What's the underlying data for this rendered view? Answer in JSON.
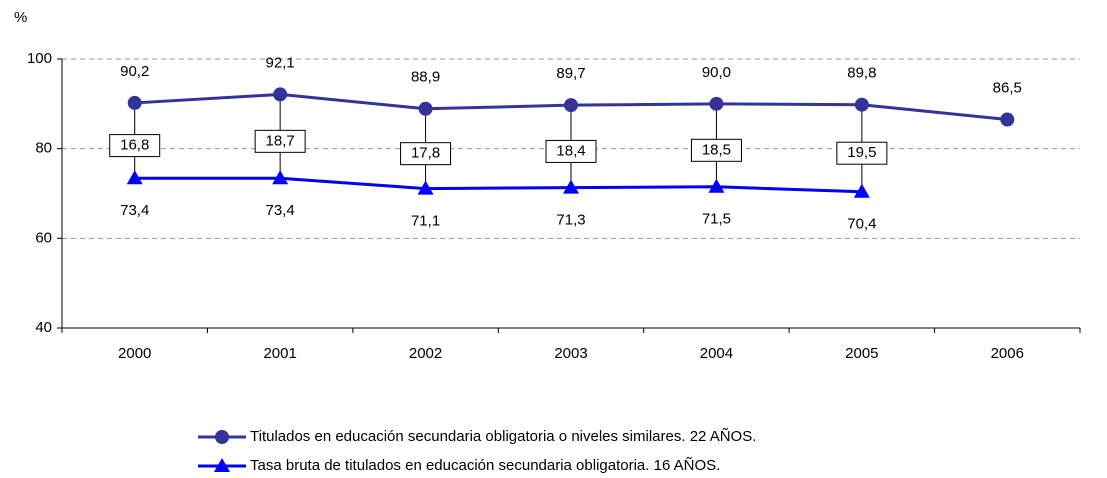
{
  "chart_data": {
    "type": "line",
    "y_label": "%",
    "categories": [
      "2000",
      "2001",
      "2002",
      "2003",
      "2004",
      "2005",
      "2006"
    ],
    "series": [
      {
        "name": "Titulados en educación secundaria obligatoria o niveles similares. 22 AÑOS.",
        "color": "#333399",
        "marker": "circle",
        "values": [
          90.2,
          92.1,
          88.9,
          89.7,
          90.0,
          89.8,
          86.5
        ],
        "value_labels": [
          "90,2",
          "92,1",
          "88,9",
          "89,7",
          "90,0",
          "89,8",
          "86,5"
        ]
      },
      {
        "name": "Tasa bruta de titulados en educación secundaria obligatoria. 16 AÑOS.",
        "color": "#0000ff",
        "marker": "triangle",
        "values": [
          73.4,
          73.4,
          71.1,
          71.3,
          71.5,
          70.4,
          null
        ],
        "value_labels": [
          "73,4",
          "73,4",
          "71,1",
          "71,3",
          "71,5",
          "70,4",
          null
        ]
      }
    ],
    "differences": {
      "values": [
        16.8,
        18.7,
        17.8,
        18.4,
        18.5,
        19.5,
        null
      ],
      "value_labels": [
        "16,8",
        "18,7",
        "17,8",
        "18,4",
        "18,5",
        "19,5",
        null
      ]
    },
    "ylim": [
      40,
      100
    ],
    "yticks": [
      40,
      60,
      80,
      100
    ],
    "grid": true,
    "legend": "bottom"
  }
}
